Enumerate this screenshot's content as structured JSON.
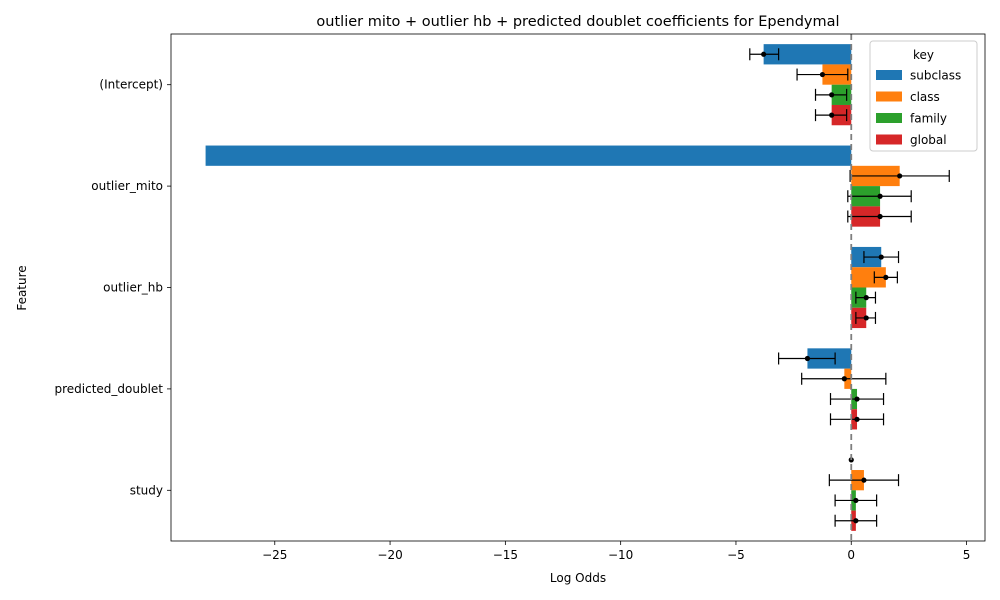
{
  "chart_data": {
    "type": "bar",
    "orientation": "horizontal",
    "title": "outlier mito + outlier hb + predicted doublet coefficients for Ependymal",
    "xlabel": "Log Odds",
    "ylabel": "Feature",
    "xlim": [
      -29.5,
      5.8
    ],
    "xticks": [
      -25,
      -20,
      -15,
      -10,
      -5,
      0,
      5
    ],
    "xtick_labels": [
      "−25",
      "−20",
      "−15",
      "−10",
      "−5",
      "0",
      "5"
    ],
    "categories": [
      "(Intercept)",
      "outlier_mito",
      "outlier_hb",
      "predicted_doublet",
      "study"
    ],
    "reference_line": 0,
    "legend": {
      "title": "key",
      "position": "top-right"
    },
    "series": [
      {
        "name": "subclass",
        "color": "#1f77b4",
        "values": [
          -3.8,
          -28.0,
          1.3,
          -1.9,
          0.0
        ],
        "ci_low": [
          -4.4,
          null,
          0.55,
          -3.15,
          null
        ],
        "ci_high": [
          -3.15,
          null,
          2.05,
          -0.7,
          null
        ]
      },
      {
        "name": "class",
        "color": "#ff7f0e",
        "values": [
          -1.25,
          2.1,
          1.5,
          -0.3,
          0.55
        ],
        "ci_low": [
          -2.35,
          -0.05,
          1.0,
          -2.15,
          -0.95
        ],
        "ci_high": [
          -0.15,
          4.25,
          2.0,
          1.5,
          2.05
        ]
      },
      {
        "name": "family",
        "color": "#2ca02c",
        "values": [
          -0.85,
          1.25,
          0.65,
          0.25,
          0.2
        ],
        "ci_low": [
          -1.55,
          -0.15,
          0.2,
          -0.9,
          -0.7
        ],
        "ci_high": [
          -0.2,
          2.6,
          1.05,
          1.4,
          1.1
        ]
      },
      {
        "name": "global",
        "color": "#d62728",
        "values": [
          -0.85,
          1.25,
          0.65,
          0.25,
          0.2
        ],
        "ci_low": [
          -1.55,
          -0.15,
          0.2,
          -0.9,
          -0.7
        ],
        "ci_high": [
          -0.2,
          2.6,
          1.05,
          1.4,
          1.1
        ]
      }
    ]
  }
}
